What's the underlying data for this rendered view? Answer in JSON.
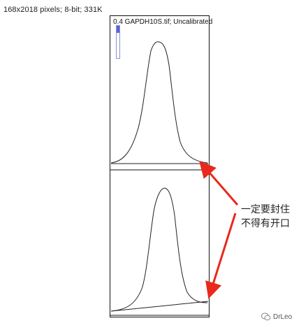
{
  "image_info": "168x2018 pixels; 8-bit; 331K",
  "lane_title": "0.4 GAPDH10S.tif; Uncalibrated",
  "annotation": {
    "line1": "一定要封住",
    "line2": "不得有开口",
    "arrow_color": "#e8291c"
  },
  "watermark": {
    "text": "DrLeo",
    "icon": "wechat-bubble-icon"
  }
}
